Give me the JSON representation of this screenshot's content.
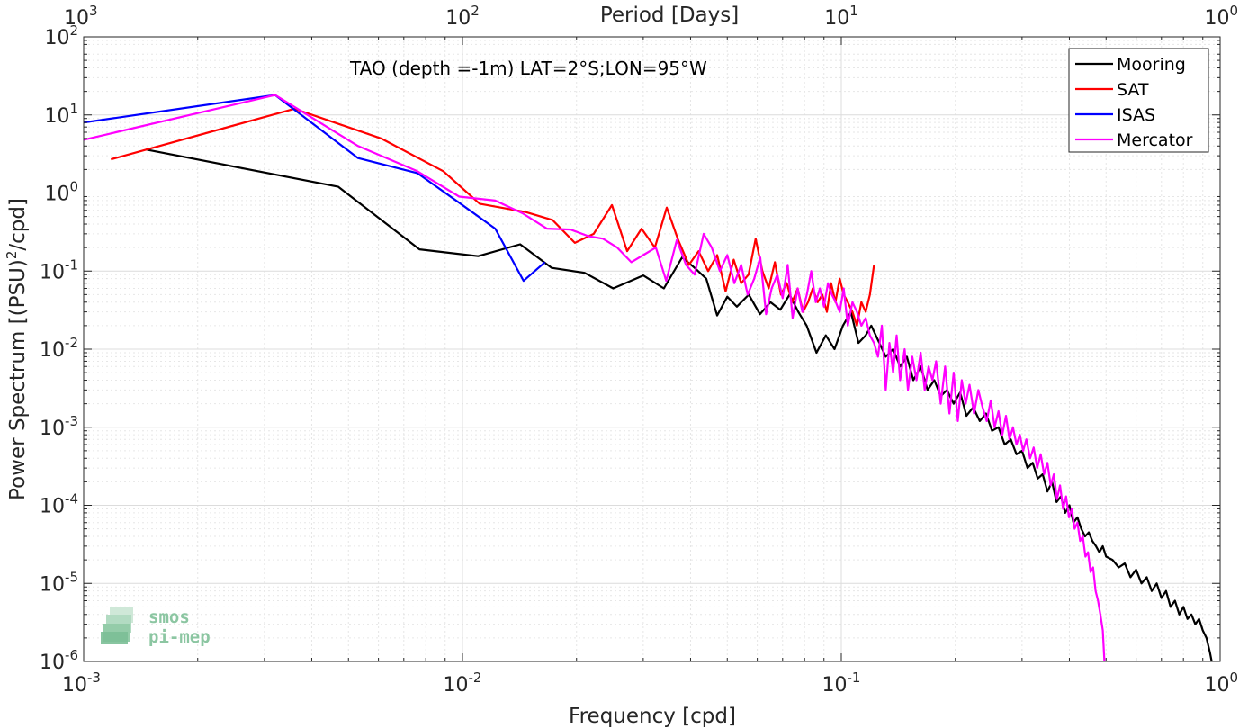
{
  "chart_data": {
    "type": "line",
    "title": "",
    "annotation": "TAO (depth =-1m) LAT=2°S;LON=95°W",
    "xlabel": "Frequency [cpd]",
    "ylabel": "Power Spectrum [(PSU)²/cpd]",
    "ylabel_parts": {
      "before": "Power Spectrum [(PSU)",
      "sup": "2",
      "after": "/cpd]"
    },
    "top_xlabel": "Period [Days]",
    "xscale": "log",
    "yscale": "log",
    "xlim": [
      0.001,
      1
    ],
    "ylim": [
      1e-06,
      100
    ],
    "grid": true,
    "legend_position": "top-right",
    "xticks": [
      {
        "value": 0.001,
        "base": "10",
        "exp": "-3"
      },
      {
        "value": 0.01,
        "base": "10",
        "exp": "-2"
      },
      {
        "value": 0.1,
        "base": "10",
        "exp": "-1"
      },
      {
        "value": 1,
        "base": "10",
        "exp": "0"
      }
    ],
    "yticks": [
      {
        "value": 1e-06,
        "base": "10",
        "exp": "-6"
      },
      {
        "value": 1e-05,
        "base": "10",
        "exp": "-5"
      },
      {
        "value": 0.0001,
        "base": "10",
        "exp": "-4"
      },
      {
        "value": 0.001,
        "base": "10",
        "exp": "-3"
      },
      {
        "value": 0.01,
        "base": "10",
        "exp": "-2"
      },
      {
        "value": 0.1,
        "base": "10",
        "exp": "-1"
      },
      {
        "value": 1,
        "base": "10",
        "exp": "0"
      },
      {
        "value": 10,
        "base": "10",
        "exp": "1"
      },
      {
        "value": 100,
        "base": "10",
        "exp": "2"
      }
    ],
    "top_xticks": [
      {
        "value": 0.001,
        "base": "10",
        "exp": "3"
      },
      {
        "value": 0.01,
        "base": "10",
        "exp": "2"
      },
      {
        "value": 0.1,
        "base": "10",
        "exp": "1"
      },
      {
        "value": 1,
        "base": "10",
        "exp": "0"
      }
    ],
    "series": [
      {
        "name": "Mooring",
        "color": "#000000",
        "x": [
          0.00146,
          0.0047,
          0.0077,
          0.011,
          0.0142,
          0.0172,
          0.021,
          0.025,
          0.03,
          0.034,
          0.038,
          0.041,
          0.044,
          0.047,
          0.05,
          0.053,
          0.057,
          0.061,
          0.065,
          0.069,
          0.073,
          0.077,
          0.081,
          0.086,
          0.091,
          0.096,
          0.101,
          0.106,
          0.111,
          0.116,
          0.12,
          0.126,
          0.131,
          0.137,
          0.143,
          0.149,
          0.155,
          0.162,
          0.169,
          0.176,
          0.183,
          0.19,
          0.198,
          0.206,
          0.214,
          0.223,
          0.232,
          0.241,
          0.25,
          0.26,
          0.27,
          0.28,
          0.29,
          0.3,
          0.31,
          0.32,
          0.33,
          0.34,
          0.35,
          0.36,
          0.37,
          0.38,
          0.39,
          0.4,
          0.41,
          0.42,
          0.43,
          0.44,
          0.45,
          0.46,
          0.47,
          0.48,
          0.49,
          0.5,
          0.52,
          0.54,
          0.56,
          0.58,
          0.6,
          0.62,
          0.64,
          0.66,
          0.68,
          0.7,
          0.72,
          0.74,
          0.76,
          0.78,
          0.8,
          0.82,
          0.84,
          0.86,
          0.88,
          0.9,
          0.92,
          0.94,
          0.95
        ],
        "y": [
          3.6,
          1.2,
          0.19,
          0.155,
          0.22,
          0.11,
          0.095,
          0.06,
          0.088,
          0.06,
          0.15,
          0.11,
          0.08,
          0.027,
          0.047,
          0.035,
          0.05,
          0.028,
          0.04,
          0.032,
          0.05,
          0.03,
          0.02,
          0.009,
          0.015,
          0.01,
          0.02,
          0.03,
          0.012,
          0.015,
          0.02,
          0.012,
          0.008,
          0.01,
          0.006,
          0.008,
          0.004,
          0.006,
          0.003,
          0.004,
          0.0025,
          0.003,
          0.002,
          0.0028,
          0.0014,
          0.0018,
          0.0012,
          0.0015,
          0.0009,
          0.001,
          0.0006,
          0.0007,
          0.00045,
          0.0005,
          0.0003,
          0.00035,
          0.00022,
          0.00025,
          0.00015,
          0.0002,
          0.00011,
          0.00013,
          8e-05,
          0.0001,
          6e-05,
          7e-05,
          5e-05,
          4e-05,
          4.5e-05,
          3.5e-05,
          3e-05,
          2.5e-05,
          3e-05,
          2.2e-05,
          2e-05,
          1.6e-05,
          1.8e-05,
          1.2e-05,
          1.5e-05,
          1e-05,
          1.2e-05,
          8e-06,
          1e-05,
          6.5e-06,
          8e-06,
          5e-06,
          6e-06,
          4e-06,
          5e-06,
          3.5e-06,
          4e-06,
          3e-06,
          3.5e-06,
          2.5e-06,
          2e-06,
          1.3e-06,
          1e-06
        ]
      },
      {
        "name": "SAT",
        "color": "#ff0000",
        "x": [
          0.00118,
          0.0036,
          0.0061,
          0.0089,
          0.0111,
          0.0147,
          0.0173,
          0.0198,
          0.0222,
          0.0248,
          0.0272,
          0.0297,
          0.0322,
          0.0346,
          0.0371,
          0.0396,
          0.042,
          0.0445,
          0.047,
          0.0495,
          0.052,
          0.0544,
          0.0569,
          0.0594,
          0.0619,
          0.0643,
          0.0668,
          0.0693,
          0.0718,
          0.0742,
          0.0767,
          0.0792,
          0.0817,
          0.0841,
          0.0866,
          0.0891,
          0.0916,
          0.094,
          0.0965,
          0.099,
          0.1015,
          0.104,
          0.107,
          0.11,
          0.113,
          0.116,
          0.119,
          0.122
        ],
        "y": [
          2.7,
          12,
          5,
          1.9,
          0.73,
          0.57,
          0.45,
          0.23,
          0.3,
          0.7,
          0.18,
          0.35,
          0.2,
          0.65,
          0.25,
          0.12,
          0.18,
          0.1,
          0.16,
          0.055,
          0.14,
          0.07,
          0.09,
          0.26,
          0.1,
          0.06,
          0.13,
          0.05,
          0.07,
          0.04,
          0.06,
          0.03,
          0.04,
          0.06,
          0.04,
          0.05,
          0.03,
          0.07,
          0.04,
          0.08,
          0.05,
          0.04,
          0.03,
          0.02,
          0.04,
          0.03,
          0.05,
          0.12
        ]
      },
      {
        "name": "ISAS",
        "color": "#0000ff",
        "x": [
          0.001,
          0.0032,
          0.0053,
          0.0076,
          0.0098,
          0.0122,
          0.0145,
          0.0165
        ],
        "y": [
          8,
          18,
          2.8,
          1.8,
          0.75,
          0.35,
          0.075,
          0.13
        ]
      },
      {
        "name": "Mercator",
        "color": "#ff00ff",
        "x": [
          0.001,
          0.0032,
          0.0053,
          0.0076,
          0.0098,
          0.0122,
          0.0144,
          0.0167,
          0.0193,
          0.0215,
          0.0235,
          0.0256,
          0.0279,
          0.03,
          0.0324,
          0.0345,
          0.0368,
          0.0389,
          0.041,
          0.0433,
          0.0455,
          0.0478,
          0.05,
          0.0522,
          0.0544,
          0.0566,
          0.0589,
          0.0611,
          0.0633,
          0.0655,
          0.0678,
          0.07,
          0.0722,
          0.0744,
          0.0767,
          0.0789,
          0.0811,
          0.0833,
          0.0856,
          0.0878,
          0.09,
          0.0922,
          0.0944,
          0.0967,
          0.099,
          0.1015,
          0.104,
          0.107,
          0.11,
          0.113,
          0.116,
          0.119,
          0.122,
          0.125,
          0.128,
          0.131,
          0.134,
          0.137,
          0.14,
          0.143,
          0.147,
          0.15,
          0.154,
          0.158,
          0.162,
          0.166,
          0.17,
          0.174,
          0.178,
          0.183,
          0.188,
          0.193,
          0.198,
          0.203,
          0.208,
          0.213,
          0.218,
          0.224,
          0.23,
          0.236,
          0.242,
          0.248,
          0.254,
          0.26,
          0.266,
          0.272,
          0.278,
          0.284,
          0.29,
          0.296,
          0.302,
          0.308,
          0.315,
          0.322,
          0.329,
          0.336,
          0.343,
          0.35,
          0.357,
          0.364,
          0.371,
          0.378,
          0.385,
          0.392,
          0.399,
          0.406,
          0.413,
          0.42,
          0.427,
          0.434,
          0.441,
          0.448,
          0.455,
          0.462,
          0.469,
          0.476,
          0.483,
          0.49,
          0.495
        ],
        "y": [
          4.8,
          18,
          4,
          1.9,
          0.9,
          0.8,
          0.55,
          0.35,
          0.34,
          0.28,
          0.26,
          0.2,
          0.13,
          0.16,
          0.2,
          0.075,
          0.25,
          0.12,
          0.09,
          0.3,
          0.2,
          0.1,
          0.16,
          0.07,
          0.12,
          0.05,
          0.08,
          0.15,
          0.028,
          0.06,
          0.09,
          0.045,
          0.12,
          0.025,
          0.06,
          0.03,
          0.05,
          0.1,
          0.04,
          0.06,
          0.035,
          0.07,
          0.05,
          0.04,
          0.03,
          0.06,
          0.02,
          0.04,
          0.03,
          0.02,
          0.025,
          0.015,
          0.012,
          0.008,
          0.02,
          0.003,
          0.012,
          0.005,
          0.015,
          0.004,
          0.01,
          0.003,
          0.008,
          0.004,
          0.009,
          0.003,
          0.006,
          0.004,
          0.007,
          0.002,
          0.006,
          0.0015,
          0.005,
          0.0012,
          0.004,
          0.002,
          0.0035,
          0.0015,
          0.003,
          0.0018,
          0.0012,
          0.0022,
          0.001,
          0.0016,
          0.0008,
          0.0014,
          0.0007,
          0.001,
          0.0006,
          0.0008,
          0.0005,
          0.0007,
          0.0004,
          0.00055,
          0.0003,
          0.00045,
          0.00025,
          0.00035,
          0.00018,
          0.00025,
          0.00012,
          0.00018,
          9e-05,
          0.00013,
          7e-05,
          9e-05,
          5e-05,
          6e-05,
          3.5e-05,
          4e-05,
          2.2e-05,
          2.5e-05,
          1.4e-05,
          1.6e-05,
          8e-06,
          6e-06,
          4e-06,
          2.5e-06,
          1e-06
        ]
      }
    ]
  },
  "watermark": {
    "line1": "smos",
    "line2": "pi-mep"
  },
  "colors": {
    "grid": "#e6e6e6",
    "axis": "#262626",
    "background": "#ffffff"
  }
}
